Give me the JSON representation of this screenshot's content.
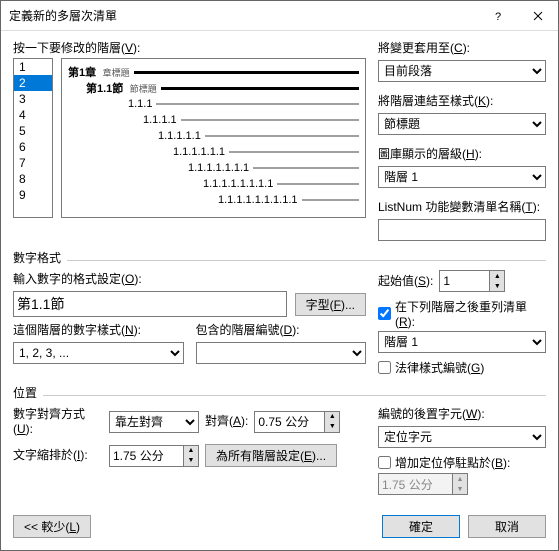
{
  "titlebar": {
    "title": "定義新的多層次清單"
  },
  "left": {
    "modify_level_label": "按一下要修改的階層",
    "modify_level_key": "V",
    "levels": [
      "1",
      "2",
      "3",
      "4",
      "5",
      "6",
      "7",
      "8",
      "9"
    ],
    "selected_index": 1
  },
  "preview": {
    "rows": [
      {
        "indent": 0,
        "text": "第1章",
        "suffix": " 章標題",
        "dark": true,
        "bold": true
      },
      {
        "indent": 18,
        "text": "第1.1節",
        "suffix": " 節標題",
        "dark": true,
        "bold": true
      },
      {
        "indent": 60,
        "text": "1.1.1",
        "dark": false
      },
      {
        "indent": 75,
        "text": "1.1.1.1",
        "dark": false
      },
      {
        "indent": 90,
        "text": "1.1.1.1.1",
        "dark": false
      },
      {
        "indent": 105,
        "text": "1.1.1.1.1.1",
        "dark": false
      },
      {
        "indent": 120,
        "text": "1.1.1.1.1.1.1",
        "dark": false
      },
      {
        "indent": 135,
        "text": "1.1.1.1.1.1.1.1",
        "dark": false
      },
      {
        "indent": 150,
        "text": "1.1.1.1.1.1.1.1.1",
        "dark": false
      }
    ]
  },
  "right": {
    "apply_to_label": "將變更套用至",
    "apply_to_key": "C",
    "apply_to_value": "目前段落",
    "link_style_label": "將階層連結至樣式",
    "link_style_key": "K",
    "link_style_value": "節標題",
    "gallery_label": "圖庫顯示的層級",
    "gallery_key": "H",
    "gallery_value": "階層 1",
    "listnum_label": "ListNum 功能變數清單名稱",
    "listnum_key": "T",
    "listnum_value": ""
  },
  "numfmt": {
    "group": "數字格式",
    "enter_fmt_label": "輸入數字的格式設定",
    "enter_fmt_key": "O",
    "enter_fmt_value": "第1.1節",
    "font_btn": "字型",
    "font_key": "F",
    "num_style_label": "這個階層的數字樣式",
    "num_style_key": "N",
    "num_style_value": "1, 2, 3, ...",
    "include_label": "包含的階層編號",
    "include_key": "D",
    "include_value": "",
    "start_label": "起始值",
    "start_key": "S",
    "start_value": "1",
    "restart_label": "在下列階層之後重列清單",
    "restart_key": "R",
    "restart_checked": true,
    "restart_value": "階層 1",
    "legal_label": "法律樣式編號",
    "legal_key": "G",
    "legal_checked": false
  },
  "pos": {
    "group": "位置",
    "align_label": "數字對齊方式",
    "align_key": "U",
    "align_value": "靠左對齊",
    "align_at_label": "對齊",
    "align_at_key": "A",
    "align_at_value": "0.75 公分",
    "indent_label": "文字縮排於",
    "indent_key": "I",
    "indent_value": "1.75 公分",
    "setall_btn": "為所有階層設定",
    "setall_key": "E",
    "follow_label": "編號的後置字元",
    "follow_key": "W",
    "follow_value": "定位字元",
    "tab_label": "增加定位停駐點於",
    "tab_key": "B",
    "tab_checked": false,
    "tab_value": "1.75 公分"
  },
  "footer": {
    "less": "<< 較少",
    "less_key": "L",
    "ok": "確定",
    "cancel": "取消"
  }
}
